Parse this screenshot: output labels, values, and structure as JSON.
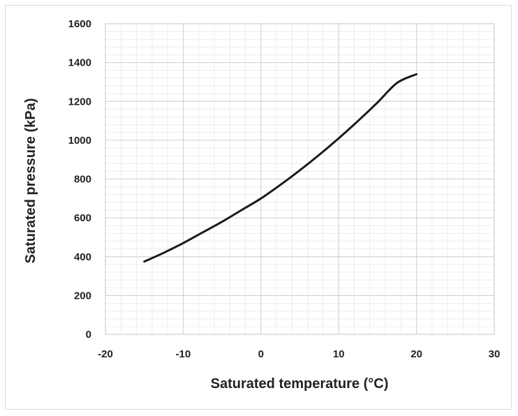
{
  "chart_data": {
    "type": "line",
    "xlabel": "Saturated temperature (°C)",
    "ylabel": "Saturated pressure (kPa)",
    "xlim": [
      -20,
      30
    ],
    "ylim": [
      0,
      1600
    ],
    "x_ticks": [
      "-20",
      "-10",
      "0",
      "10",
      "20",
      "30"
    ],
    "y_ticks": [
      "0",
      "200",
      "400",
      "600",
      "800",
      "1000",
      "1200",
      "1400",
      "1600"
    ],
    "grid": true,
    "legend": "none",
    "series": [
      {
        "color": "#1a1a1a",
        "x": [
          -15,
          -12.5,
          -10,
          -7.5,
          -5,
          -2.5,
          0,
          2.5,
          5,
          7.5,
          10,
          12.5,
          15,
          17.5,
          20
        ],
        "y": [
          375,
          420,
          470,
          525,
          580,
          640,
          700,
          770,
          845,
          925,
          1010,
          1100,
          1195,
          1295,
          1340
        ]
      }
    ]
  }
}
